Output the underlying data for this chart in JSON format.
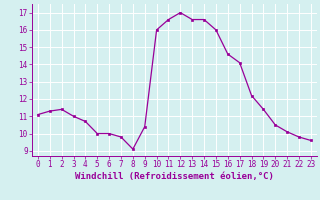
{
  "x": [
    0,
    1,
    2,
    3,
    4,
    5,
    6,
    7,
    8,
    9,
    10,
    11,
    12,
    13,
    14,
    15,
    16,
    17,
    18,
    19,
    20,
    21,
    22,
    23
  ],
  "y": [
    11.1,
    11.3,
    11.4,
    11.0,
    10.7,
    10.0,
    10.0,
    9.8,
    9.1,
    10.4,
    16.0,
    16.6,
    17.0,
    16.6,
    16.6,
    16.0,
    14.6,
    14.1,
    12.2,
    11.4,
    10.5,
    10.1,
    9.8,
    9.6
  ],
  "line_color": "#990099",
  "marker": "s",
  "markersize": 2.0,
  "linewidth": 0.9,
  "xlim": [
    -0.5,
    23.5
  ],
  "ylim": [
    8.7,
    17.5
  ],
  "yticks": [
    9,
    10,
    11,
    12,
    13,
    14,
    15,
    16,
    17
  ],
  "xticks": [
    0,
    1,
    2,
    3,
    4,
    5,
    6,
    7,
    8,
    9,
    10,
    11,
    12,
    13,
    14,
    15,
    16,
    17,
    18,
    19,
    20,
    21,
    22,
    23
  ],
  "xlabel": "Windchill (Refroidissement éolien,°C)",
  "background_color": "#d5f0f0",
  "grid_color": "#ffffff",
  "tick_color": "#990099",
  "label_color": "#990099",
  "tick_fontsize": 5.5,
  "xlabel_fontsize": 6.5
}
